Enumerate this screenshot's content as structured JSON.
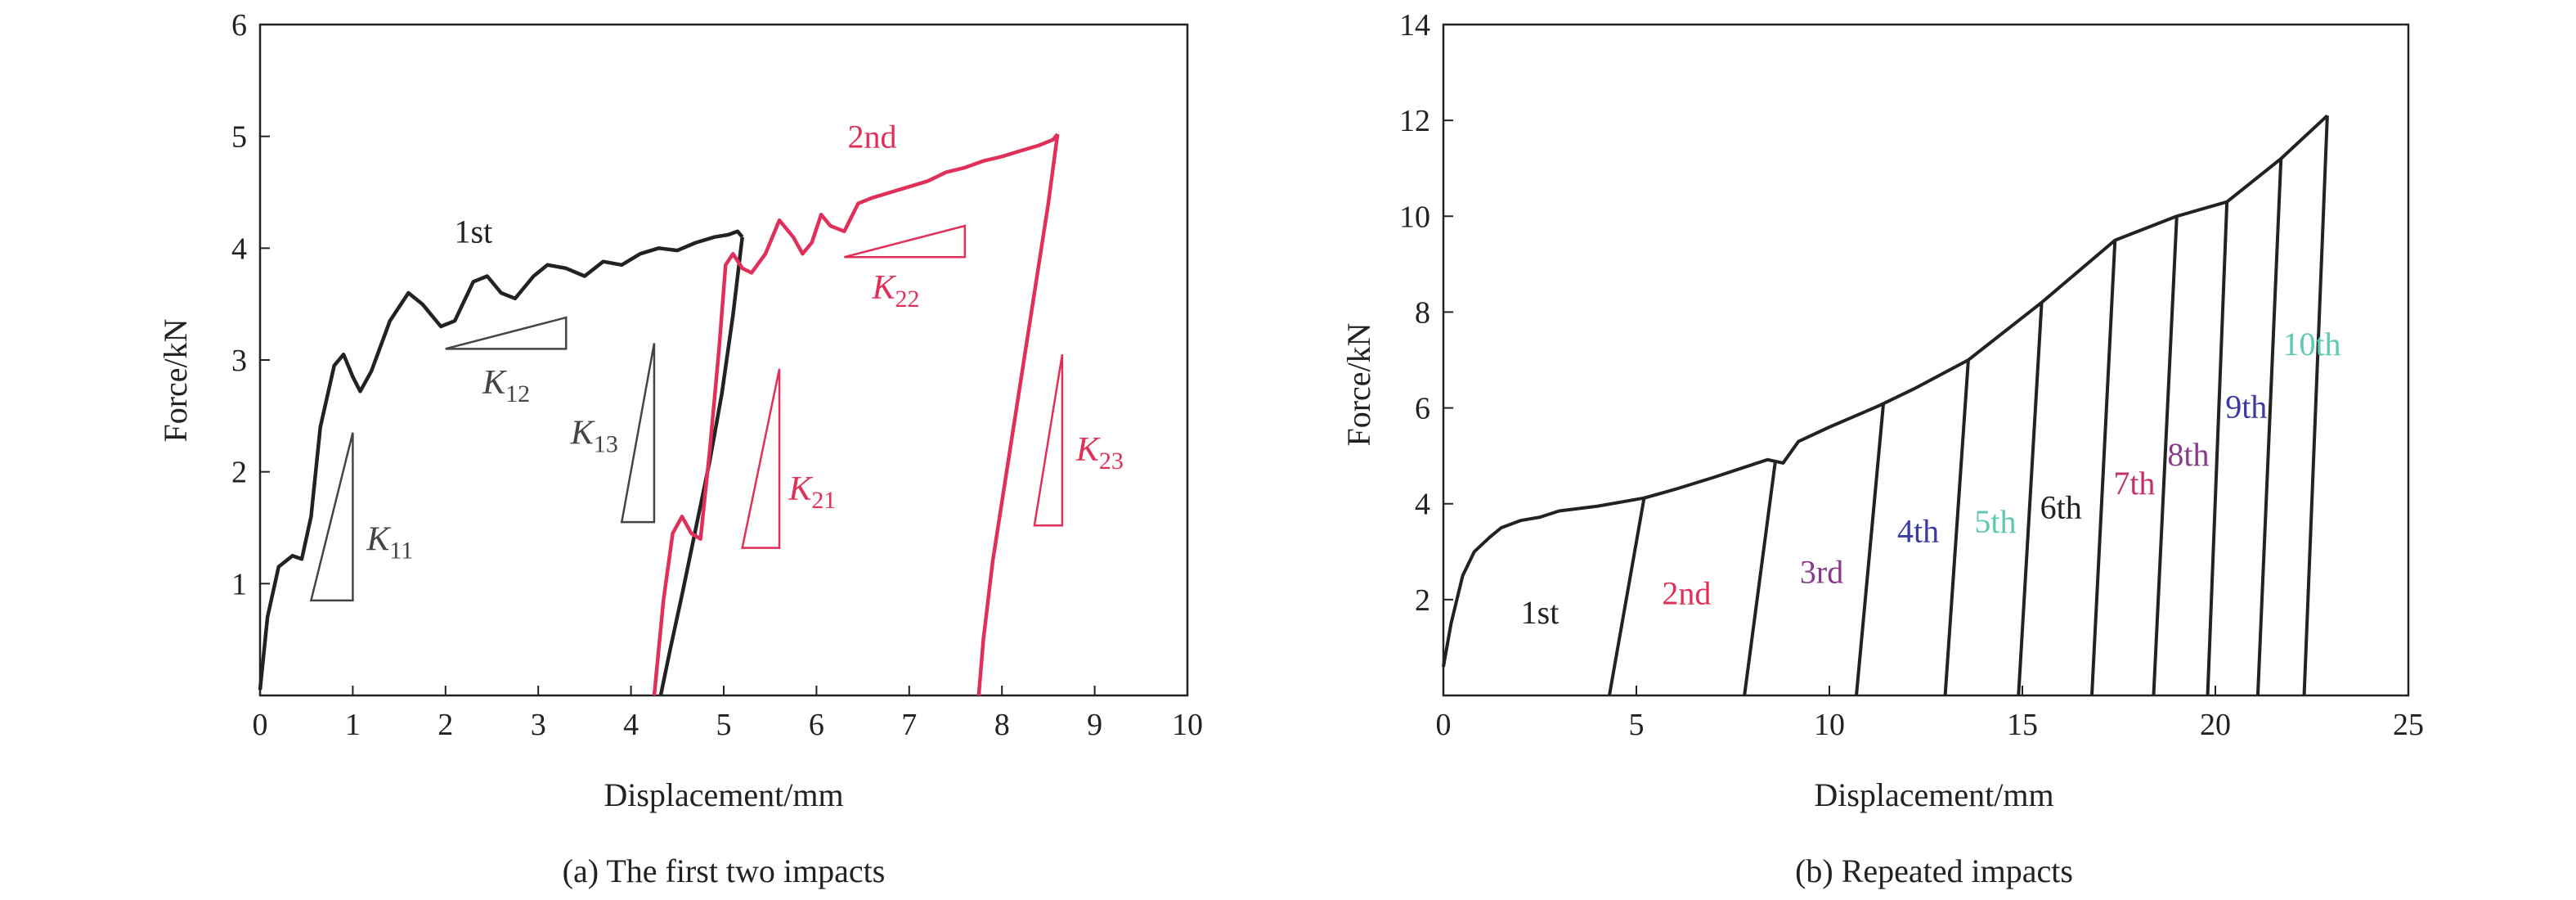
{
  "chart_data": [
    {
      "type": "line",
      "caption": "(a) The first two impacts",
      "xlabel": "Displacement/mm",
      "ylabel": "Force/kN",
      "xlim": [
        0,
        10
      ],
      "ylim": [
        0,
        6
      ],
      "xticks": [
        "0",
        "1",
        "2",
        "3",
        "4",
        "5",
        "6",
        "7",
        "8",
        "9",
        "10"
      ],
      "yticks": [
        "1",
        "2",
        "3",
        "4",
        "5",
        "6"
      ],
      "grid": false,
      "series": [
        {
          "name": "1st",
          "color": "#222222",
          "points": [
            [
              0.0,
              0.05
            ],
            [
              0.08,
              0.7
            ],
            [
              0.2,
              1.15
            ],
            [
              0.35,
              1.25
            ],
            [
              0.45,
              1.22
            ],
            [
              0.55,
              1.6
            ],
            [
              0.65,
              2.4
            ],
            [
              0.8,
              2.95
            ],
            [
              0.9,
              3.05
            ],
            [
              1.0,
              2.85
            ],
            [
              1.08,
              2.72
            ],
            [
              1.2,
              2.9
            ],
            [
              1.4,
              3.35
            ],
            [
              1.6,
              3.6
            ],
            [
              1.75,
              3.5
            ],
            [
              1.95,
              3.3
            ],
            [
              2.1,
              3.35
            ],
            [
              2.3,
              3.7
            ],
            [
              2.45,
              3.75
            ],
            [
              2.6,
              3.6
            ],
            [
              2.75,
              3.55
            ],
            [
              2.95,
              3.75
            ],
            [
              3.1,
              3.85
            ],
            [
              3.3,
              3.82
            ],
            [
              3.5,
              3.75
            ],
            [
              3.7,
              3.88
            ],
            [
              3.9,
              3.85
            ],
            [
              4.1,
              3.95
            ],
            [
              4.3,
              4.0
            ],
            [
              4.5,
              3.98
            ],
            [
              4.7,
              4.05
            ],
            [
              4.9,
              4.1
            ],
            [
              5.05,
              4.12
            ],
            [
              5.15,
              4.15
            ],
            [
              5.2,
              4.1
            ]
          ]
        },
        {
          "name": "1st-unload",
          "color": "#222222",
          "points": [
            [
              5.2,
              4.1
            ],
            [
              5.1,
              3.4
            ],
            [
              4.98,
              2.7
            ],
            [
              4.85,
              2.1
            ],
            [
              4.7,
              1.5
            ],
            [
              4.55,
              0.9
            ],
            [
              4.42,
              0.4
            ],
            [
              4.32,
              0.0
            ]
          ]
        },
        {
          "name": "2nd",
          "color": "#e0305a",
          "points": [
            [
              4.25,
              0.0
            ],
            [
              4.35,
              0.85
            ],
            [
              4.45,
              1.45
            ],
            [
              4.55,
              1.6
            ],
            [
              4.65,
              1.45
            ],
            [
              4.75,
              1.4
            ],
            [
              4.85,
              2.2
            ],
            [
              4.95,
              3.1
            ],
            [
              5.02,
              3.85
            ],
            [
              5.1,
              3.95
            ],
            [
              5.2,
              3.82
            ],
            [
              5.3,
              3.78
            ],
            [
              5.45,
              3.95
            ],
            [
              5.6,
              4.25
            ],
            [
              5.75,
              4.1
            ],
            [
              5.85,
              3.95
            ],
            [
              5.95,
              4.05
            ],
            [
              6.05,
              4.3
            ],
            [
              6.15,
              4.2
            ],
            [
              6.3,
              4.15
            ],
            [
              6.45,
              4.4
            ],
            [
              6.6,
              4.45
            ],
            [
              6.8,
              4.5
            ],
            [
              7.0,
              4.55
            ],
            [
              7.2,
              4.6
            ],
            [
              7.4,
              4.68
            ],
            [
              7.6,
              4.72
            ],
            [
              7.8,
              4.78
            ],
            [
              8.0,
              4.82
            ],
            [
              8.2,
              4.87
            ],
            [
              8.4,
              4.92
            ],
            [
              8.55,
              4.97
            ],
            [
              8.6,
              5.02
            ]
          ]
        },
        {
          "name": "2nd-unload",
          "color": "#e0305a",
          "points": [
            [
              8.6,
              5.02
            ],
            [
              8.5,
              4.4
            ],
            [
              8.35,
              3.6
            ],
            [
              8.2,
              2.8
            ],
            [
              8.05,
              2.0
            ],
            [
              7.9,
              1.2
            ],
            [
              7.8,
              0.5
            ],
            [
              7.75,
              0.0
            ]
          ]
        }
      ],
      "labels": [
        {
          "text": "1st",
          "x": 2.3,
          "y": 4.05,
          "color": "#222222"
        },
        {
          "text": "2nd",
          "x": 6.6,
          "y": 4.9,
          "color": "#e0305a"
        }
      ],
      "slopes": [
        {
          "name": "K",
          "sub": "11",
          "color": "#444444",
          "x1": 0.55,
          "x2": 1.0,
          "y1": 0.85,
          "y2": 2.35,
          "shape": "vertical-right",
          "lx": 1.15,
          "ly": 1.3
        },
        {
          "name": "K",
          "sub": "12",
          "color": "#444444",
          "x1": 2.0,
          "x2": 3.3,
          "y1": 3.1,
          "y2": 3.38,
          "shape": "horizontal-right",
          "lx": 2.4,
          "ly": 2.7
        },
        {
          "name": "K",
          "sub": "13",
          "color": "#444444",
          "x1": 3.9,
          "x2": 4.25,
          "y1": 1.55,
          "y2": 3.15,
          "shape": "vertical-right",
          "lx": 3.35,
          "ly": 2.25
        },
        {
          "name": "K",
          "sub": "21",
          "color": "#e0305a",
          "x1": 5.2,
          "x2": 5.6,
          "y1": 1.32,
          "y2": 2.92,
          "shape": "vertical-right",
          "lx": 5.7,
          "ly": 1.75
        },
        {
          "name": "K",
          "sub": "22",
          "color": "#e0305a",
          "x1": 6.3,
          "x2": 7.6,
          "y1": 3.92,
          "y2": 4.2,
          "shape": "horizontal-right",
          "lx": 6.6,
          "ly": 3.55
        },
        {
          "name": "K",
          "sub": "23",
          "color": "#e0305a",
          "x1": 8.35,
          "x2": 8.65,
          "y1": 1.52,
          "y2": 3.05,
          "shape": "vertical-right",
          "lx": 8.8,
          "ly": 2.1
        }
      ]
    },
    {
      "type": "line",
      "caption": "(b) Repeated impacts",
      "xlabel": "Displacement/mm",
      "ylabel": "Force/kN",
      "xlim": [
        0,
        25
      ],
      "ylim": [
        0,
        14
      ],
      "xticks": [
        "0",
        "5",
        "10",
        "15",
        "20",
        "25"
      ],
      "yticks": [
        "2",
        "4",
        "6",
        "8",
        "10",
        "12",
        "14"
      ],
      "grid": false,
      "color": "#222222",
      "envelope": [
        [
          0.0,
          0.6
        ],
        [
          0.2,
          1.5
        ],
        [
          0.5,
          2.5
        ],
        [
          0.8,
          3.0
        ],
        [
          1.2,
          3.3
        ],
        [
          1.5,
          3.5
        ],
        [
          2.0,
          3.65
        ],
        [
          2.5,
          3.72
        ],
        [
          3.0,
          3.85
        ],
        [
          4.0,
          3.95
        ],
        [
          5.2,
          4.12
        ],
        [
          6.0,
          4.3
        ],
        [
          7.0,
          4.55
        ],
        [
          8.4,
          4.92
        ],
        [
          8.8,
          4.85
        ],
        [
          9.2,
          5.3
        ],
        [
          10.0,
          5.6
        ],
        [
          11.3,
          6.05
        ],
        [
          12.2,
          6.4
        ],
        [
          13.6,
          7.0
        ],
        [
          15.5,
          8.2
        ],
        [
          17.4,
          9.5
        ],
        [
          19.0,
          10.0
        ],
        [
          20.3,
          10.3
        ],
        [
          21.7,
          11.2
        ],
        [
          22.9,
          12.1
        ]
      ],
      "unloads": [
        {
          "peak_x": 5.2,
          "end_x": 4.3
        },
        {
          "peak_x": 8.6,
          "end_x": 7.8
        },
        {
          "peak_x": 11.4,
          "end_x": 10.7
        },
        {
          "peak_x": 13.6,
          "end_x": 13.0
        },
        {
          "peak_x": 15.5,
          "end_x": 14.9
        },
        {
          "peak_x": 17.4,
          "end_x": 16.8
        },
        {
          "peak_x": 19.0,
          "end_x": 18.4
        },
        {
          "peak_x": 20.3,
          "end_x": 19.8
        },
        {
          "peak_x": 21.7,
          "end_x": 21.1
        },
        {
          "peak_x": 22.9,
          "end_x": 22.3
        }
      ],
      "labels": [
        {
          "text": "1st",
          "x": 2.5,
          "y": 1.5,
          "color": "#222222"
        },
        {
          "text": "2nd",
          "x": 6.3,
          "y": 1.9,
          "color": "#e0305a"
        },
        {
          "text": "3rd",
          "x": 9.8,
          "y": 2.35,
          "color": "#8a3a8a"
        },
        {
          "text": "4th",
          "x": 12.3,
          "y": 3.2,
          "color": "#3a3aa0"
        },
        {
          "text": "5th",
          "x": 14.3,
          "y": 3.4,
          "color": "#5ec8b0"
        },
        {
          "text": "6th",
          "x": 16.0,
          "y": 3.7,
          "color": "#222222"
        },
        {
          "text": "7th",
          "x": 17.9,
          "y": 4.2,
          "color": "#c0306a"
        },
        {
          "text": "8th",
          "x": 19.3,
          "y": 4.8,
          "color": "#8a3a8a"
        },
        {
          "text": "9th",
          "x": 20.8,
          "y": 5.8,
          "color": "#3a3aa0"
        },
        {
          "text": "10th",
          "x": 22.5,
          "y": 7.1,
          "color": "#5ec8b0"
        }
      ]
    }
  ]
}
